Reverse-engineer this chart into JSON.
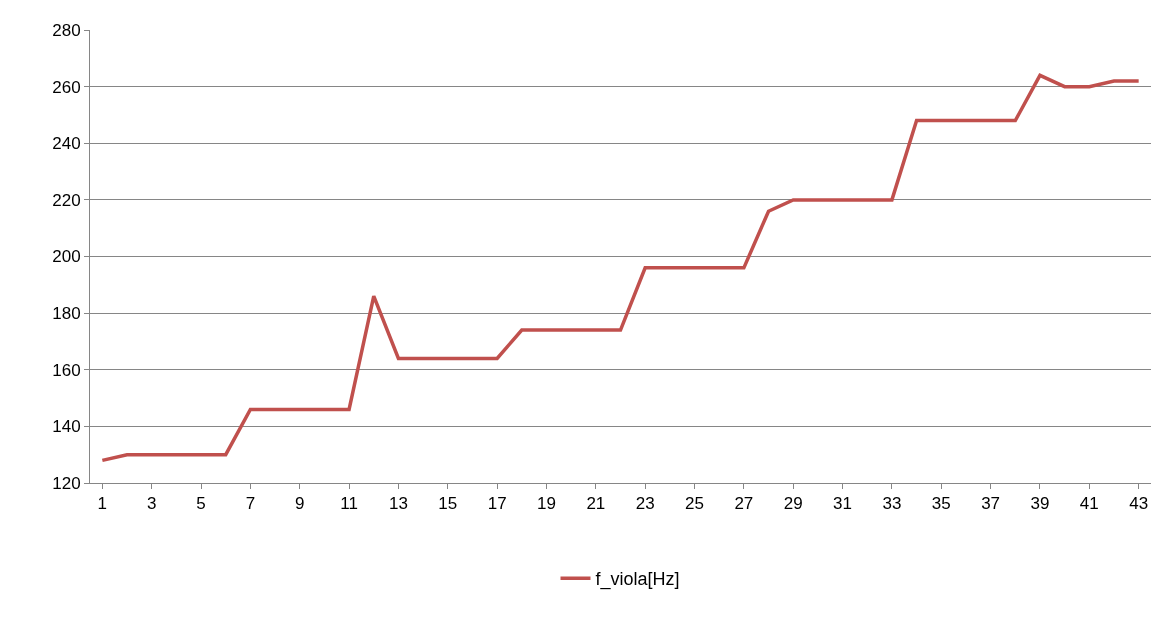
{
  "chart_data": {
    "type": "line",
    "x": [
      1,
      2,
      3,
      4,
      5,
      6,
      7,
      8,
      9,
      10,
      11,
      12,
      13,
      14,
      15,
      16,
      17,
      18,
      19,
      20,
      21,
      22,
      23,
      24,
      25,
      26,
      27,
      28,
      29,
      30,
      31,
      32,
      33,
      34,
      35,
      36,
      37,
      38,
      39,
      40,
      41,
      42,
      43
    ],
    "xlim": [
      0.5,
      43.5
    ],
    "xticks": [
      1,
      3,
      5,
      7,
      9,
      11,
      13,
      15,
      17,
      19,
      21,
      23,
      25,
      27,
      29,
      31,
      33,
      35,
      37,
      39,
      41,
      43
    ],
    "series": [
      {
        "name": "f_viola[Hz]",
        "color": "#c0504d",
        "values": [
          128,
          130,
          130,
          130,
          130,
          130,
          146,
          146,
          146,
          146,
          146,
          186,
          164,
          164,
          164,
          164,
          164,
          174,
          174,
          174,
          174,
          174,
          196,
          196,
          196,
          196,
          196,
          216,
          220,
          220,
          220,
          220,
          220,
          248,
          248,
          248,
          248,
          248,
          264,
          260,
          260,
          262,
          262
        ]
      }
    ],
    "ylim": [
      120,
      280
    ],
    "yticks": [
      120,
      140,
      160,
      180,
      200,
      220,
      240,
      260,
      280
    ],
    "grid": "y",
    "legend": "bottom",
    "marker": "none",
    "line_style": "solid"
  }
}
